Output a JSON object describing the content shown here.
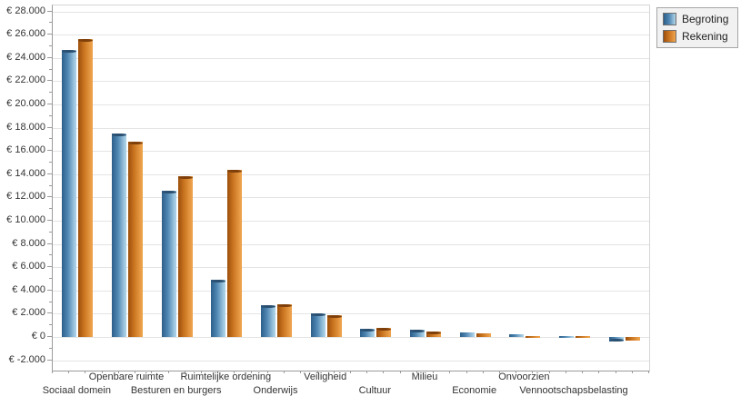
{
  "chart_data": {
    "type": "bar",
    "title": "",
    "xlabel": "",
    "ylabel": "",
    "grid": true,
    "legend_position": "top-right",
    "ylim": [
      -2000,
      28000
    ],
    "currency_prefix": "€",
    "categories": [
      "Sociaal domein",
      "Openbare ruimte",
      "Besturen en burgers",
      "Ruimtelijke ordening",
      "Onderwijs",
      "Veiligheid",
      "Cultuur",
      "Milieu",
      "Economie",
      "Onvoorzien",
      "Vennootschapsbelasting",
      ""
    ],
    "series": [
      {
        "name": "Begroting",
        "values": [
          24700,
          17500,
          12600,
          4950,
          2700,
          2050,
          720,
          620,
          390,
          250,
          100,
          -400
        ],
        "color": "#4e86b2",
        "color_dark": "#2d5f8a",
        "color_light": "#a9cfe5",
        "cap_color": "#2b4f70"
      },
      {
        "name": "Rekening",
        "values": [
          25600,
          16800,
          13850,
          14350,
          2800,
          1850,
          760,
          500,
          340,
          70,
          80,
          -350
        ],
        "color": "#c9741f",
        "color_dark": "#9c4f0d",
        "color_light": "#eda14b",
        "cap_color": "#7e3f0a"
      }
    ],
    "y_ticks": [
      {
        "v": 28000,
        "label": "€ 28.000"
      },
      {
        "v": 26000,
        "label": "€ 26.000"
      },
      {
        "v": 24000,
        "label": "€ 24.000"
      },
      {
        "v": 22000,
        "label": "€ 22.000"
      },
      {
        "v": 20000,
        "label": "€ 20.000"
      },
      {
        "v": 18000,
        "label": "€ 18.000"
      },
      {
        "v": 16000,
        "label": "€ 16.000"
      },
      {
        "v": 14000,
        "label": "€ 14.000"
      },
      {
        "v": 12000,
        "label": "€ 12.000"
      },
      {
        "v": 10000,
        "label": "€ 10.000"
      },
      {
        "v": 8000,
        "label": "€ 8.000"
      },
      {
        "v": 6000,
        "label": "€ 6.000"
      },
      {
        "v": 4000,
        "label": "€ 4.000"
      },
      {
        "v": 2000,
        "label": "€ 2.000"
      },
      {
        "v": 0,
        "label": "€ 0"
      },
      {
        "v": -2000,
        "label": "€ -2.000"
      }
    ]
  }
}
